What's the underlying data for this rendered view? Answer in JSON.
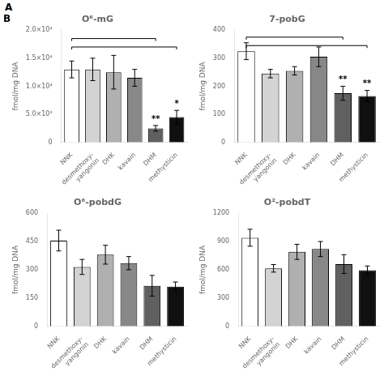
{
  "chart_data": [
    {
      "type": "bar",
      "title": "O⁶-mG",
      "ylabel": "fmol/mg DNA",
      "categories": [
        "NNK",
        "desmethoxy-\nyangonin",
        "DHK",
        "kavain",
        "DHM",
        "methysticin"
      ],
      "colors": [
        "#ffffff",
        "#d3d3d3",
        "#b0b0b0",
        "#888888",
        "#606060",
        "#101010"
      ],
      "values": [
        13000,
        13000,
        12500,
        11500,
        2500,
        4500
      ],
      "errors": [
        1500,
        2000,
        3000,
        1500,
        500,
        1200
      ],
      "sig_labels": [
        null,
        null,
        null,
        null,
        "**",
        "*"
      ],
      "brackets": [
        {
          "from": "NNK",
          "to": "DHM",
          "y": 18500
        },
        {
          "from": "NNK",
          "to": "methysticin",
          "y": 17000
        }
      ],
      "ylim": [
        0,
        20000
      ],
      "yticks": [
        0,
        {
          "value": 5000,
          "label": "5.0×10³"
        },
        {
          "value": 10000,
          "label": "1.0×10⁴"
        },
        {
          "value": 15000,
          "label": "1.5×10⁴"
        },
        {
          "value": 20000,
          "label": "2.0×10⁴"
        }
      ],
      "grid": false,
      "annotations": [
        "A",
        "B"
      ]
    },
    {
      "type": "bar",
      "title": "7-pobG",
      "ylabel": "fmol/mg DNA",
      "categories": [
        "NNK",
        "desmethoxy-\nyangonin",
        "DHK",
        "kavain",
        "DHM",
        "methysticin"
      ],
      "colors": [
        "#ffffff",
        "#d3d3d3",
        "#b0b0b0",
        "#888888",
        "#606060",
        "#101010"
      ],
      "values": [
        325,
        245,
        255,
        305,
        175,
        165
      ],
      "errors": [
        30,
        15,
        15,
        35,
        25,
        20
      ],
      "sig_labels": [
        null,
        null,
        null,
        null,
        "**",
        "**"
      ],
      "brackets": [
        {
          "from": "NNK",
          "to": "DHM",
          "y": 375
        },
        {
          "from": "NNK",
          "to": "methysticin",
          "y": 345
        }
      ],
      "ylim": [
        0,
        400
      ],
      "yticks": [
        0,
        100,
        200,
        300,
        400
      ],
      "grid": false
    },
    {
      "type": "bar",
      "title": "O⁶-pobdG",
      "ylabel": "fmol/mg DNA",
      "categories": [
        "NNK",
        "desmethoxy-\nyangonin",
        "DHK",
        "kavain",
        "DHM",
        "methysticin"
      ],
      "colors": [
        "#ffffff",
        "#d3d3d3",
        "#b0b0b0",
        "#888888",
        "#606060",
        "#101010"
      ],
      "values": [
        455,
        315,
        380,
        335,
        215,
        210
      ],
      "errors": [
        55,
        40,
        50,
        35,
        55,
        25
      ],
      "ylim": [
        0,
        600
      ],
      "yticks": [
        0,
        150,
        300,
        450,
        600
      ],
      "grid": false
    },
    {
      "type": "bar",
      "title": "O²-pobdT",
      "ylabel": "fmol/mg DNA",
      "categories": [
        "NNK",
        "desmethoxy-\nyangonin",
        "DHK",
        "kavain",
        "DHM",
        "methysticin"
      ],
      "colors": [
        "#ffffff",
        "#d3d3d3",
        "#b0b0b0",
        "#888888",
        "#606060",
        "#101010"
      ],
      "values": [
        940,
        615,
        790,
        820,
        660,
        595
      ],
      "errors": [
        90,
        40,
        80,
        80,
        100,
        45
      ],
      "ylim": [
        0,
        1200
      ],
      "yticks": [
        0,
        300,
        600,
        900,
        1200
      ],
      "grid": false
    }
  ]
}
